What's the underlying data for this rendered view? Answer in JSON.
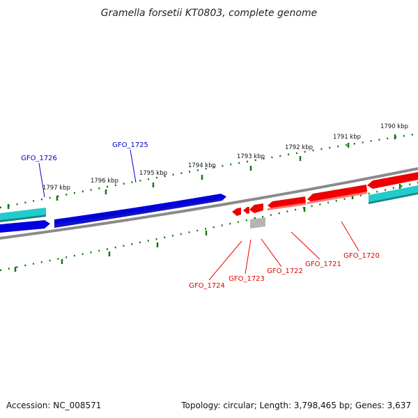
{
  "title": "Gramella forsetii KT0803, complete genome",
  "footer": {
    "accession": "Accession: NC_008571",
    "summary": "Topology: circular; Length: 3,798,465 bp; Genes: 3,637"
  },
  "colors": {
    "forward_gene": "#0000dd",
    "reverse_gene": "#ee0000",
    "rna_gene": "#22cccc",
    "pseudo_gene": "#b0b0b0",
    "backbone": "#888888",
    "ticks": "#117711"
  },
  "scale_ticks": [
    {
      "label": "1790 kbp"
    },
    {
      "label": "1791 kbp"
    },
    {
      "label": "1792 kbp"
    },
    {
      "label": "1793 kbp"
    },
    {
      "label": "1794 kbp"
    },
    {
      "label": "1795 kbp"
    },
    {
      "label": "1796 kbp"
    },
    {
      "label": "1797 kbp"
    }
  ],
  "gene_labels": [
    {
      "id": "GFO_1726",
      "label": "GFO_1726",
      "strand": "forward"
    },
    {
      "id": "GFO_1725",
      "label": "GFO_1725",
      "strand": "forward"
    },
    {
      "id": "GFO_1724",
      "label": "GFO_1724",
      "strand": "reverse"
    },
    {
      "id": "GFO_1723",
      "label": "GFO_1723",
      "strand": "reverse"
    },
    {
      "id": "GFO_1722",
      "label": "GFO_1722",
      "strand": "reverse"
    },
    {
      "id": "GFO_1721",
      "label": "GFO_1721",
      "strand": "reverse"
    },
    {
      "id": "GFO_1720",
      "label": "GFO_1720",
      "strand": "reverse"
    }
  ]
}
